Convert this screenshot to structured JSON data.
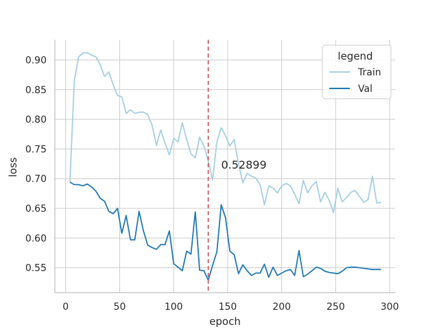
{
  "chart_data": {
    "type": "line",
    "xlabel": "epoch",
    "ylabel": "loss",
    "xlim": [
      -10,
      305
    ],
    "ylim": [
      0.508,
      0.934
    ],
    "xticks": [
      0,
      50,
      100,
      150,
      200,
      250,
      300
    ],
    "yticks": [
      0.55,
      0.6,
      0.65,
      0.7,
      0.75,
      0.8,
      0.85,
      0.9
    ],
    "ytick_labels": [
      "0.55",
      "0.60",
      "0.65",
      "0.70",
      "0.75",
      "0.80",
      "0.85",
      "0.90"
    ],
    "grid": true,
    "legend": {
      "title": "legend",
      "position": "top-right"
    },
    "vline": {
      "x": 132,
      "color": "#c44e52",
      "style": "dashed"
    },
    "annotation": {
      "text": "0.52899",
      "x": 144,
      "y": 0.724
    },
    "series": [
      {
        "name": "Train",
        "color": "#a6cee3",
        "x": [
          4,
          8,
          12,
          16,
          20,
          24,
          28,
          32,
          36,
          40,
          44,
          48,
          52,
          56,
          60,
          64,
          68,
          72,
          76,
          80,
          84,
          88,
          92,
          96,
          100,
          104,
          108,
          112,
          116,
          120,
          124,
          128,
          132,
          136,
          140,
          144,
          148,
          152,
          156,
          160,
          164,
          168,
          172,
          176,
          180,
          184,
          188,
          192,
          196,
          200,
          204,
          208,
          212,
          216,
          220,
          224,
          228,
          232,
          236,
          240,
          244,
          248,
          252,
          256,
          260,
          264,
          268,
          272,
          276,
          280,
          284,
          288,
          292
        ],
        "y": [
          0.695,
          0.865,
          0.905,
          0.912,
          0.912,
          0.908,
          0.905,
          0.892,
          0.872,
          0.88,
          0.858,
          0.84,
          0.838,
          0.81,
          0.816,
          0.81,
          0.812,
          0.812,
          0.808,
          0.79,
          0.756,
          0.782,
          0.76,
          0.74,
          0.768,
          0.762,
          0.794,
          0.766,
          0.742,
          0.735,
          0.77,
          0.755,
          0.73,
          0.698,
          0.762,
          0.786,
          0.772,
          0.755,
          0.766,
          0.725,
          0.693,
          0.709,
          0.704,
          0.701,
          0.69,
          0.656,
          0.688,
          0.684,
          0.676,
          0.688,
          0.692,
          0.688,
          0.674,
          0.658,
          0.697,
          0.676,
          0.688,
          0.695,
          0.661,
          0.677,
          0.664,
          0.643,
          0.684,
          0.661,
          0.668,
          0.677,
          0.68,
          0.67,
          0.66,
          0.665,
          0.704,
          0.659,
          0.66
        ]
      },
      {
        "name": "Val",
        "color": "#1f78b4",
        "x": [
          4,
          8,
          12,
          16,
          20,
          24,
          28,
          32,
          36,
          40,
          44,
          48,
          52,
          56,
          60,
          64,
          68,
          72,
          76,
          80,
          84,
          88,
          92,
          96,
          100,
          104,
          108,
          112,
          116,
          120,
          124,
          128,
          132,
          136,
          140,
          144,
          148,
          152,
          156,
          160,
          164,
          168,
          172,
          176,
          180,
          184,
          188,
          192,
          196,
          200,
          204,
          208,
          212,
          216,
          220,
          224,
          228,
          232,
          236,
          240,
          244,
          248,
          252,
          256,
          260,
          264,
          268,
          272,
          276,
          280,
          284,
          288,
          292
        ],
        "y": [
          0.694,
          0.69,
          0.69,
          0.688,
          0.691,
          0.686,
          0.679,
          0.667,
          0.662,
          0.645,
          0.641,
          0.65,
          0.608,
          0.638,
          0.597,
          0.597,
          0.645,
          0.612,
          0.588,
          0.584,
          0.581,
          0.589,
          0.589,
          0.612,
          0.557,
          0.551,
          0.545,
          0.578,
          0.573,
          0.644,
          0.546,
          0.545,
          0.529,
          0.554,
          0.577,
          0.656,
          0.634,
          0.578,
          0.572,
          0.54,
          0.555,
          0.545,
          0.537,
          0.541,
          0.541,
          0.556,
          0.534,
          0.551,
          0.537,
          0.541,
          0.545,
          0.547,
          0.537,
          0.579,
          0.535,
          0.539,
          0.545,
          0.551,
          0.549,
          0.544,
          0.542,
          0.541,
          0.54,
          0.544,
          0.55,
          0.551,
          0.551,
          0.55,
          0.549,
          0.548,
          0.547,
          0.547,
          0.547
        ]
      }
    ]
  }
}
